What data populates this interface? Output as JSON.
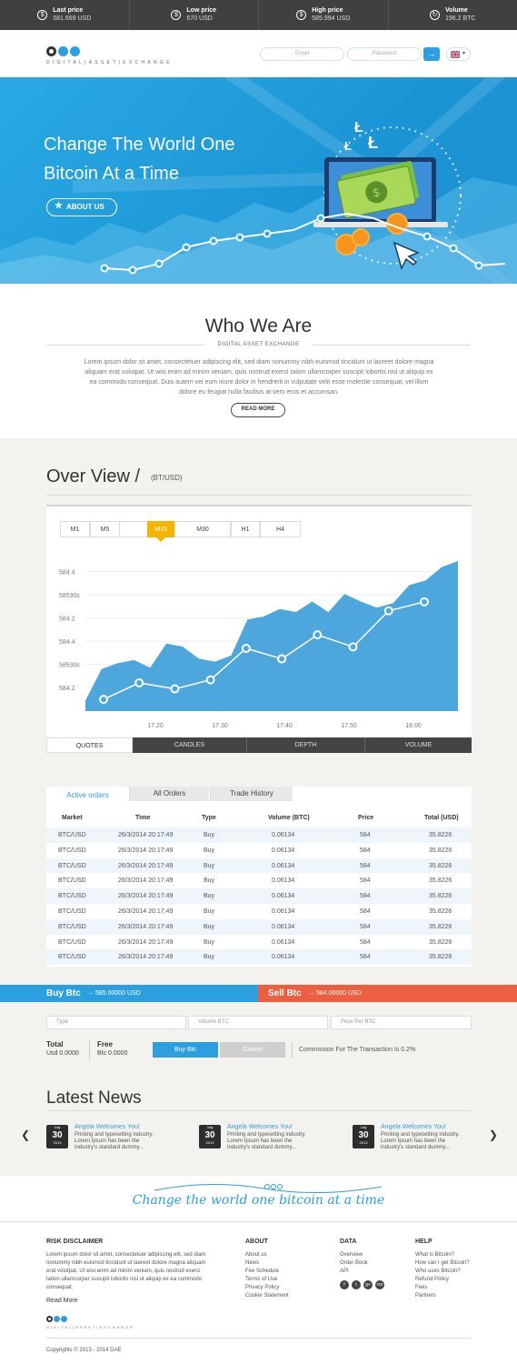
{
  "ticker": [
    {
      "icon": "$",
      "label": "Last price",
      "value": "581.669 USD"
    },
    {
      "icon": "$",
      "label": "Low price",
      "value": "570 USD"
    },
    {
      "icon": "$",
      "label": "High price",
      "value": "585.994 USD"
    },
    {
      "icon": "↻",
      "label": "Volume",
      "value": "196.2 BTC"
    }
  ],
  "header": {
    "logo_text": "DIGITAL|ASSET|EXCHANGE",
    "email_placeholder": "Email",
    "password_placeholder": "Password",
    "login_arrow": "→",
    "lang_caret": "▾"
  },
  "hero": {
    "title_line1": "Change The World One",
    "title_line2": "Bitcoin At a Time",
    "about_button": "ABOUT US",
    "star": "★"
  },
  "who": {
    "title": "Who We Are",
    "subtitle": "DIGITAL ASSET EXCHANGE",
    "text": "Lorem ipsum dolor sit amet, consectetuer adipiscing elit, sed diam nonummy nibh euismod tincidunt ut laoreet dolore magna aliquam erat volutpat. Ut wisi enim ad minim veniam, quis nostrud exerci tation ullamcorper suscipit lobortis nisl ut aliquip ex ea commodo consequat. Duis autem vel eum iriure dolor in hendrerit in vulputate velit esse molestie consequat, vel illum dolore eu feugiat nulla facilisis at vero eros et accumsan.",
    "read_more": "READ MORE"
  },
  "overview": {
    "title": "Over View /",
    "subtitle": "(BT/USD)",
    "timeframes": [
      "M1",
      "M5",
      "M15",
      "M30",
      "H1",
      "H4"
    ],
    "active_timeframe": "M15",
    "bottom_tabs": [
      "QUOTES",
      "CANDLES",
      "DEPTH",
      "VOLUME"
    ]
  },
  "chart_data": {
    "type": "area",
    "y_tick_labels": [
      "584.2",
      "58530c",
      "584.4",
      "584.2",
      "58530c",
      "584.4"
    ],
    "x_tick_labels": [
      "17.20",
      "17.30",
      "17.40",
      "17.50",
      "18.00"
    ],
    "area_values": [
      0.07,
      0.28,
      0.32,
      0.34,
      0.29,
      0.45,
      0.43,
      0.35,
      0.33,
      0.37,
      0.61,
      0.63,
      0.68,
      0.66,
      0.73,
      0.66,
      0.78,
      0.73,
      0.69,
      0.72,
      0.84,
      0.87,
      0.96,
      1.0
    ],
    "line_values": [
      0.06,
      0.17,
      0.13,
      0.19,
      0.4,
      0.33,
      0.49,
      0.41,
      0.65,
      0.71
    ]
  },
  "orders": {
    "tabs": [
      "Active orders",
      "All Orders",
      "Trade History"
    ],
    "columns": [
      "Market",
      "Time",
      "Type",
      "Volume (BTC)",
      "Price",
      "Total (USD)"
    ],
    "rows": [
      [
        "BTC/USD",
        "26/3/2014 20:17:49",
        "Buy",
        "0.06134",
        "584",
        "35.8226"
      ],
      [
        "BTC/USD",
        "26/3/2014 20:17:49",
        "Buy",
        "0.06134",
        "584",
        "35.8226"
      ],
      [
        "BTC/USD",
        "26/3/2014 20:17:49",
        "Buy",
        "0.06134",
        "584",
        "35.8226"
      ],
      [
        "BTC/USD",
        "26/3/2014 20:17:49",
        "Buy",
        "0.06134",
        "584",
        "35.8226"
      ],
      [
        "BTC/USD",
        "26/3/2014 20:17:49",
        "Buy",
        "0.06134",
        "584",
        "35.8226"
      ],
      [
        "BTC/USD",
        "26/3/2014 20:17:49",
        "Buy",
        "0.06134",
        "584",
        "35.8226"
      ],
      [
        "BTC/USD",
        "26/3/2014 20:17:49",
        "Buy",
        "0.06134",
        "584",
        "35.8226"
      ],
      [
        "BTC/USD",
        "26/3/2014 20:17:49",
        "Buy",
        "0.06134",
        "584",
        "35.8226"
      ],
      [
        "BTC/USD",
        "26/3/2014 20:17:49",
        "Buy",
        "0.06134",
        "584",
        "35.8226"
      ]
    ]
  },
  "trade": {
    "buy_label": "Buy Btc",
    "buy_price": "→ 585.00000 USD",
    "sell_label": "Sell Btc",
    "sell_price": "→ 584.00000 USD",
    "type_placeholder": "Type",
    "volume_placeholder": "Volume BTC",
    "price_placeholder": "Price Per BTC",
    "total_label": "Total",
    "total_value": "Usd 0.0000",
    "free_label": "Free",
    "free_value": "Btc 0.0000",
    "buy_button": "Buy Btc",
    "cancel_button": "Cancel",
    "commission": "Commission For The Transaction Is 0.2%"
  },
  "news": {
    "title": "Latest News",
    "prev": "❮",
    "next": "❯",
    "items": [
      {
        "month": "July",
        "day": "30",
        "year": "2013",
        "headline": "Angela Welcomes You!",
        "text": "Printing and typesetting industry. Lorem Ipsum has been the industry's standard dummy..."
      },
      {
        "month": "July",
        "day": "30",
        "year": "2013",
        "headline": "Angela Welcomes You!",
        "text": "Printing and typesetting industry. Lorem Ipsum has been the industry's standard dummy..."
      },
      {
        "month": "July",
        "day": "30",
        "year": "2013",
        "headline": "Angela Welcomes You!",
        "text": "Printing and typesetting industry. Lorem Ipsum has been the industry's standard dummy..."
      }
    ]
  },
  "slogan": "Change the world one bitcoin at a time",
  "footer": {
    "risk_title": "RISK DISCLAIMER",
    "risk_text": "Lorem ipsum dolor sit amet, consectetuer adipiscing elit, sed diam nonummy nibh euismod tincidunt ut laoreet dolore magna aliquam erat volutpat. Ut wisi enim ad minim veniam, quis nostrud exerci tation ullamcorper suscipit lobortis nisl ut aliquip ex ea commodo consequat.",
    "read_more": "Read More",
    "about_title": "ABOUT",
    "about_links": [
      "About us",
      "News",
      "Fee Schedule",
      "Terms of Use",
      "Privacy Policy",
      "Cookie Statement"
    ],
    "data_title": "DATA",
    "data_links": [
      "Overview",
      "Order Book",
      "API"
    ],
    "help_title": "HELP",
    "help_links": [
      "What is Bitcoin?",
      "How can I get Bitcoin?",
      "Who uses Bitcoin?",
      "Refund Policy",
      "Fees",
      "Partners"
    ],
    "social": [
      "f",
      "t",
      "g+",
      "rss"
    ],
    "copyright": "Copyrights © 2013 - 2014 DAE"
  },
  "colors": {
    "accent": "#2c9fe0",
    "sell": "#ec6041",
    "active_tab": "#f5b400",
    "dark": "#404040"
  }
}
